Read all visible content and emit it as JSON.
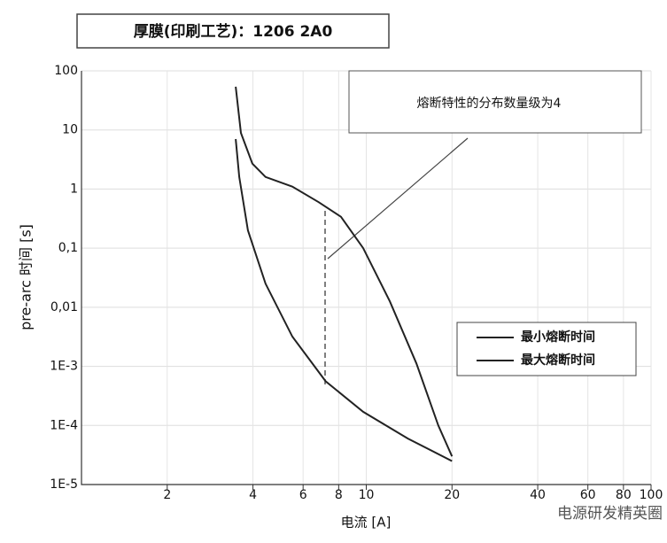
{
  "chart_data": {
    "type": "line",
    "title": "厚膜(印刷工艺)：1206 2A0",
    "annotation": "熔断特性的分布数量级为4",
    "watermark": "电源研发精英圈",
    "x_label": "电流 [A]",
    "y_label": "pre-arc 时间 [s]",
    "x_log": true,
    "y_log": true,
    "grid": true,
    "legend": "right",
    "xlim": [
      1,
      100
    ],
    "xticks": [
      2,
      4,
      6,
      8,
      10,
      20,
      40,
      60,
      80,
      100
    ],
    "ylim": [
      1e-05,
      100
    ],
    "yticks": [
      100,
      10,
      1,
      {
        "value": 0.1,
        "label": "0,1"
      },
      {
        "value": 0.01,
        "label": "0,01"
      },
      {
        "value": 0.001,
        "label": "1E-3"
      },
      {
        "value": 0.0001,
        "label": "1E-4"
      },
      {
        "value": 1e-05,
        "label": "1E-5"
      }
    ],
    "series": [
      {
        "name": "最小熔断时间",
        "color": "#222222",
        "x": [
          3.48,
          3.58,
          3.84,
          4.43,
          5.5,
          7.2,
          9.75,
          14,
          20
        ],
        "values": [
          7,
          1.6,
          0.2,
          0.025,
          0.0032,
          0.00056,
          0.00017,
          6e-05,
          2.5e-05
        ]
      },
      {
        "name": "最大熔断时间",
        "color": "#222222",
        "x": [
          3.48,
          3.63,
          3.98,
          4.43,
          5.5,
          6.8,
          8.15,
          9.75,
          12.1,
          15,
          17.9,
          20
        ],
        "values": [
          54,
          8.9,
          2.7,
          1.6,
          1.1,
          0.6,
          0.34,
          0.1,
          0.0126,
          0.00112,
          0.0001,
          3e-05
        ]
      }
    ]
  }
}
